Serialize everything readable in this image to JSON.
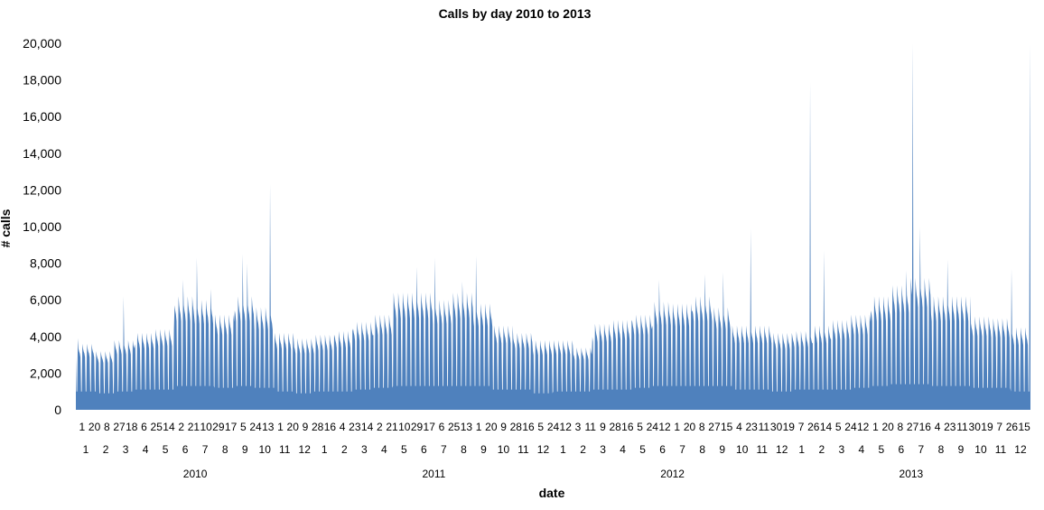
{
  "chart_data": {
    "type": "area",
    "title": "Calls by day 2010 to 2013",
    "xlabel": "date",
    "ylabel": "# calls",
    "ylim": [
      0,
      20000
    ],
    "y_ticks": [
      "0",
      "2,000",
      "4,000",
      "6,000",
      "8,000",
      "10,000",
      "12,000",
      "14,000",
      "16,000",
      "18,000",
      "20,000"
    ],
    "y_tick_values": [
      0,
      2000,
      4000,
      6000,
      8000,
      10000,
      12000,
      14000,
      16000,
      18000,
      20000
    ],
    "gridlines": false,
    "legend": "none",
    "series_color": "#4f81bd",
    "x_axis_levels": {
      "day_labels": [
        "1",
        "20",
        "8",
        "27",
        "18",
        "6",
        "25",
        "14",
        "2",
        "21",
        "10",
        "29",
        "17",
        "5",
        "24",
        "13",
        "1",
        "20",
        "9",
        "28",
        "16",
        "4",
        "23",
        "14",
        "2",
        "21",
        "10",
        "29",
        "17",
        "6",
        "25",
        "13",
        "1",
        "20",
        "9",
        "28",
        "16",
        "5",
        "24",
        "12",
        "3",
        "11",
        "9",
        "28",
        "16",
        "5",
        "24",
        "12",
        "1",
        "20",
        "8",
        "27",
        "15",
        "4",
        "23",
        "11",
        "30",
        "19",
        "7",
        "26",
        "14",
        "5",
        "24",
        "12",
        "1",
        "20",
        "8",
        "27",
        "16",
        "4",
        "23",
        "11",
        "30",
        "19",
        "7",
        "26",
        "15"
      ],
      "months": [
        "1",
        "2",
        "3",
        "4",
        "5",
        "6",
        "7",
        "8",
        "9",
        "10",
        "11",
        "12",
        "1",
        "2",
        "3",
        "4",
        "5",
        "6",
        "7",
        "8",
        "9",
        "10",
        "11",
        "12",
        "1",
        "2",
        "3",
        "4",
        "5",
        "6",
        "7",
        "8",
        "9",
        "10",
        "11",
        "12",
        "1",
        "2",
        "3",
        "4",
        "5",
        "6",
        "7",
        "8",
        "9",
        "10",
        "11",
        "12"
      ],
      "years": [
        "2010",
        "2011",
        "2012",
        "2013"
      ]
    },
    "monthly_levels": [
      [
        2010,
        1,
        1000,
        3600
      ],
      [
        2010,
        2,
        900,
        3200
      ],
      [
        2010,
        3,
        1000,
        3800
      ],
      [
        2010,
        4,
        1100,
        4200
      ],
      [
        2010,
        5,
        1100,
        4400
      ],
      [
        2010,
        6,
        1300,
        6200
      ],
      [
        2010,
        7,
        1300,
        6000
      ],
      [
        2010,
        8,
        1200,
        5200
      ],
      [
        2010,
        9,
        1300,
        6200
      ],
      [
        2010,
        10,
        1200,
        5600
      ],
      [
        2010,
        11,
        1000,
        4200
      ],
      [
        2010,
        12,
        900,
        3900
      ],
      [
        2011,
        1,
        1000,
        4100
      ],
      [
        2011,
        2,
        1000,
        4300
      ],
      [
        2011,
        3,
        1100,
        4800
      ],
      [
        2011,
        4,
        1200,
        5200
      ],
      [
        2011,
        5,
        1300,
        6400
      ],
      [
        2011,
        6,
        1300,
        6400
      ],
      [
        2011,
        7,
        1300,
        6000
      ],
      [
        2011,
        8,
        1300,
        6400
      ],
      [
        2011,
        9,
        1300,
        5800
      ],
      [
        2011,
        10,
        1100,
        4600
      ],
      [
        2011,
        11,
        1100,
        4200
      ],
      [
        2011,
        12,
        900,
        3800
      ],
      [
        2012,
        1,
        1000,
        3800
      ],
      [
        2012,
        2,
        1000,
        3400
      ],
      [
        2012,
        3,
        1100,
        4700
      ],
      [
        2012,
        4,
        1100,
        4900
      ],
      [
        2012,
        5,
        1200,
        5200
      ],
      [
        2012,
        6,
        1300,
        5900
      ],
      [
        2012,
        7,
        1300,
        5800
      ],
      [
        2012,
        8,
        1300,
        6200
      ],
      [
        2012,
        9,
        1300,
        5600
      ],
      [
        2012,
        10,
        1100,
        4600
      ],
      [
        2012,
        11,
        1100,
        4600
      ],
      [
        2012,
        12,
        1000,
        4200
      ],
      [
        2013,
        1,
        1100,
        4300
      ],
      [
        2013,
        2,
        1100,
        4600
      ],
      [
        2013,
        3,
        1100,
        4900
      ],
      [
        2013,
        4,
        1200,
        5200
      ],
      [
        2013,
        5,
        1300,
        6200
      ],
      [
        2013,
        6,
        1400,
        6800
      ],
      [
        2013,
        7,
        1400,
        7200
      ],
      [
        2013,
        8,
        1300,
        6200
      ],
      [
        2013,
        9,
        1300,
        6200
      ],
      [
        2013,
        10,
        1200,
        5100
      ],
      [
        2013,
        11,
        1200,
        5000
      ],
      [
        2013,
        12,
        1000,
        4500
      ]
    ],
    "peaks": [
      [
        "2010-01-04",
        3900
      ],
      [
        "2010-03-15",
        6200
      ],
      [
        "2010-06-14",
        7100
      ],
      [
        "2010-07-05",
        8300
      ],
      [
        "2010-07-26",
        6600
      ],
      [
        "2010-09-13",
        8500
      ],
      [
        "2010-09-20",
        8000
      ],
      [
        "2010-10-25",
        12300
      ],
      [
        "2011-06-06",
        7800
      ],
      [
        "2011-07-04",
        8300
      ],
      [
        "2011-08-15",
        7000
      ],
      [
        "2011-09-05",
        8400
      ],
      [
        "2012-06-11",
        7100
      ],
      [
        "2012-08-20",
        7400
      ],
      [
        "2012-09-17",
        7500
      ],
      [
        "2012-10-29",
        9900
      ],
      [
        "2013-01-28",
        17900
      ],
      [
        "2013-02-18",
        8700
      ],
      [
        "2013-06-24",
        7600
      ],
      [
        "2013-07-04",
        20000
      ],
      [
        "2013-07-15",
        10000
      ],
      [
        "2013-08-26",
        8200
      ],
      [
        "2013-12-02",
        7700
      ],
      [
        "2013-12-30",
        20000
      ]
    ]
  }
}
